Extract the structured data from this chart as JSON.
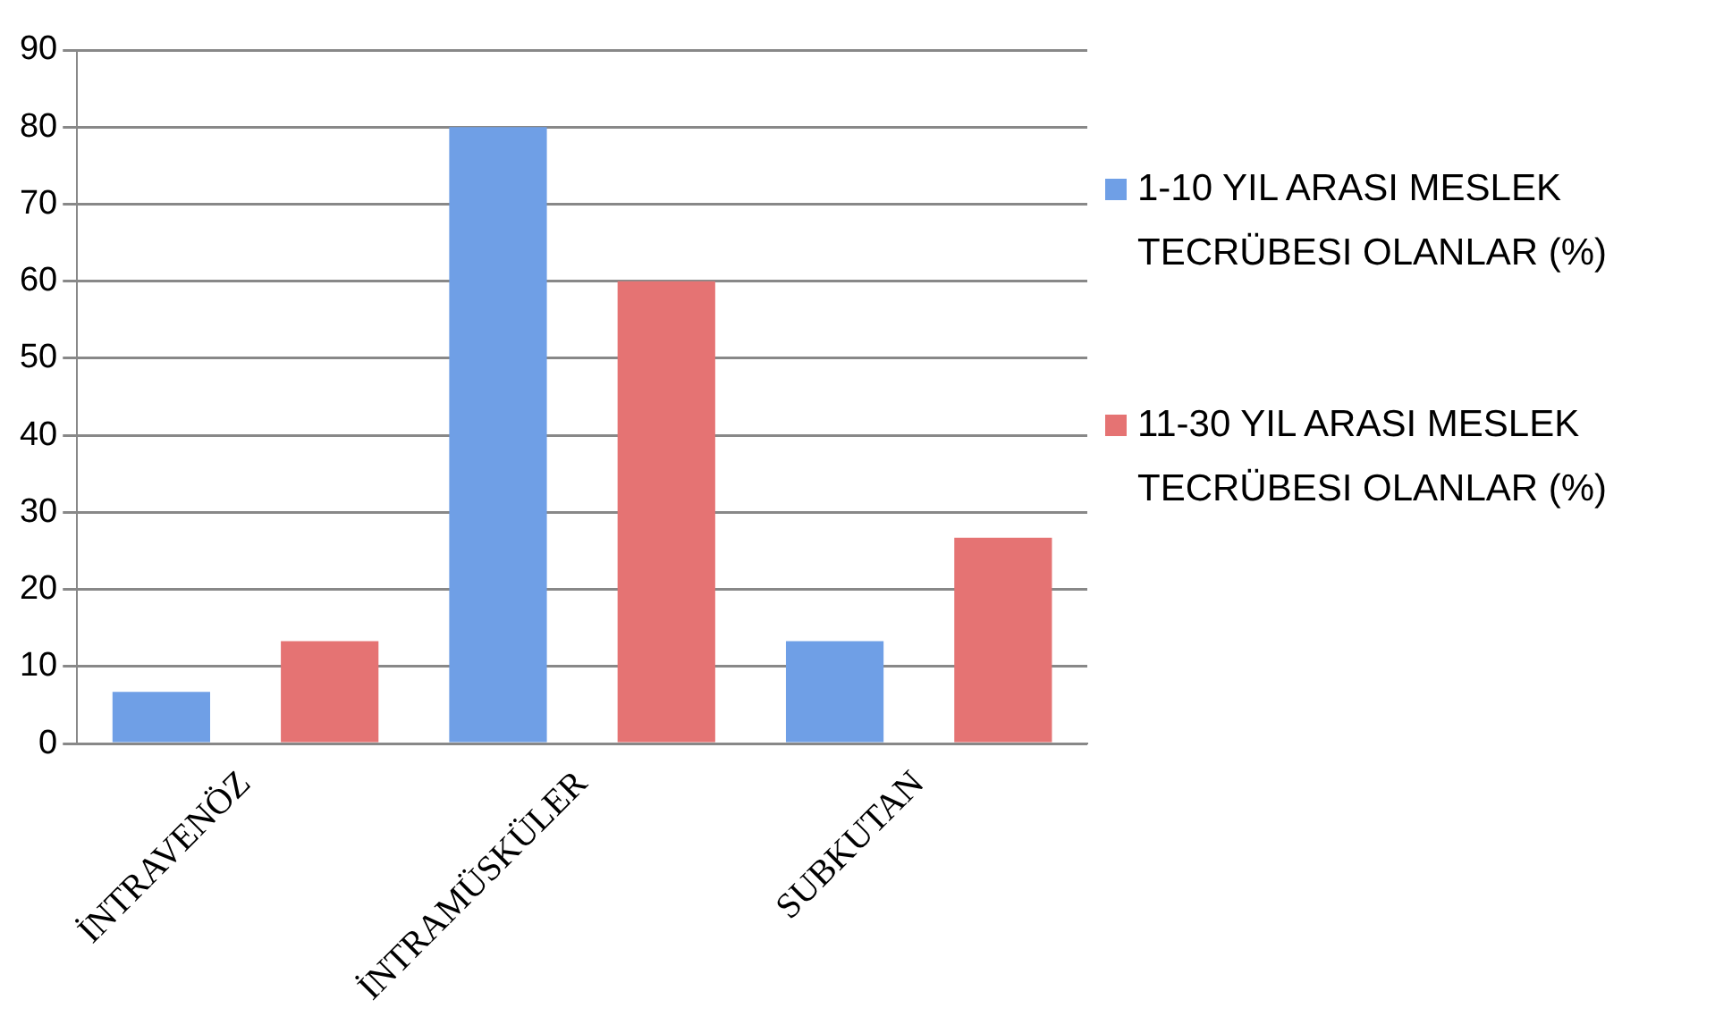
{
  "chart_data": {
    "type": "bar",
    "categories": [
      "İNTRAVENÖZ",
      "İNTRAMÜSKÜLER",
      "SUBKUTAN"
    ],
    "series": [
      {
        "name": "1-10 YIL ARASI MESLEK TECRÜBESI OLANLAR (%)",
        "color": "#6f9fe6",
        "values": [
          6.7,
          80,
          13.3
        ]
      },
      {
        "name": "11-30 YIL ARASI MESLEK TECRÜBESI OLANLAR (%)",
        "color": "#e57373",
        "values": [
          13.3,
          60,
          26.7
        ]
      }
    ],
    "ylim": [
      0,
      90
    ],
    "yticks": [
      0,
      10,
      20,
      30,
      40,
      50,
      60,
      70,
      80,
      90
    ],
    "grid": "y",
    "legend": "right"
  }
}
